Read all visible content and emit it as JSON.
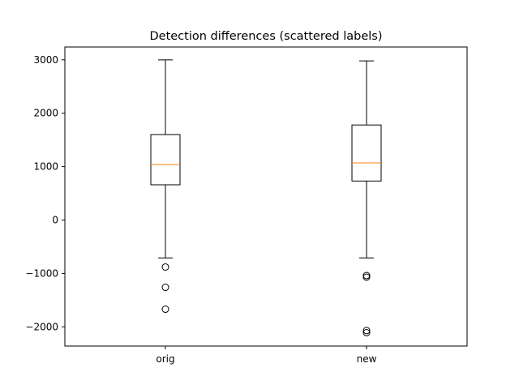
{
  "chart_data": {
    "type": "box",
    "title": "Detection differences (scattered labels)",
    "xlabel": "",
    "ylabel": "",
    "categories": [
      "orig",
      "new"
    ],
    "ylim": [
      -2360,
      3240
    ],
    "yticks": [
      -2000,
      -1000,
      0,
      1000,
      2000,
      3000
    ],
    "ytick_labels": [
      "−2000",
      "−1000",
      "0",
      "1000",
      "2000",
      "3000"
    ],
    "grid": false,
    "boxes": [
      {
        "name": "orig",
        "whislo": -710,
        "q1": 660,
        "med": 1040,
        "q3": 1600,
        "whishi": 3000,
        "fliers": [
          -880,
          -1260,
          -1670
        ]
      },
      {
        "name": "new",
        "whislo": -710,
        "q1": 730,
        "med": 1070,
        "q3": 1780,
        "whishi": 2980,
        "fliers": [
          -1040,
          -1070,
          -2070,
          -2110
        ]
      }
    ],
    "colors": {
      "box": "#000000",
      "median": "#ff7f0e",
      "flier": "#000000"
    }
  }
}
